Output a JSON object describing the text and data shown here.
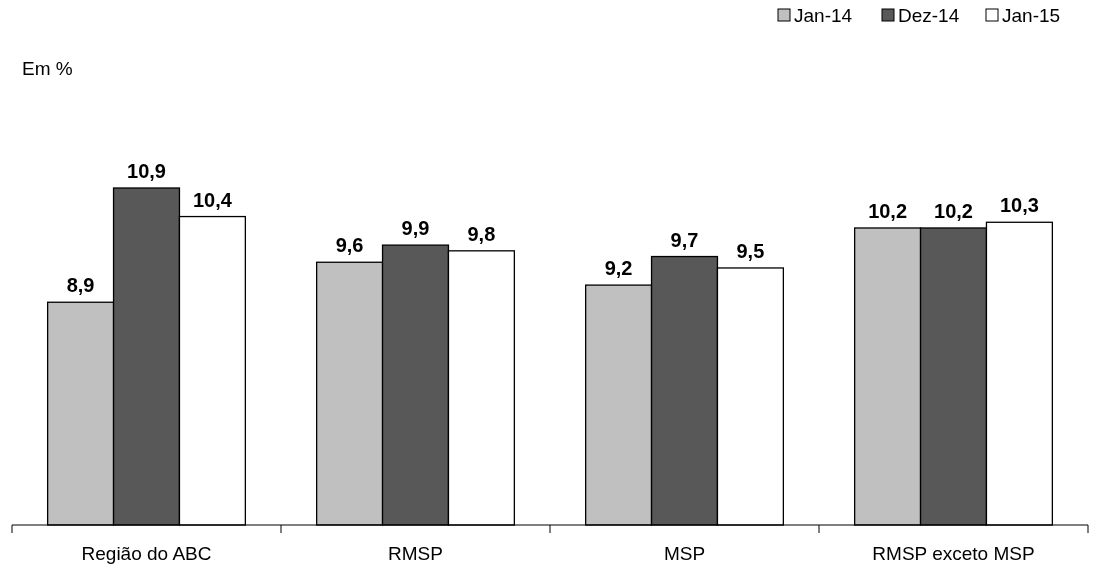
{
  "chart_data": {
    "type": "bar",
    "categories": [
      "Região do ABC",
      "RMSP",
      "MSP",
      "RMSP exceto MSP"
    ],
    "series": [
      {
        "name": "Jan-14",
        "color": "#c0c0c0",
        "values": [
          8.9,
          9.6,
          9.2,
          10.2
        ],
        "value_labels": [
          "8,9",
          "9,6",
          "9,2",
          "10,2"
        ]
      },
      {
        "name": "Dez-14",
        "color": "#585858",
        "values": [
          10.9,
          9.9,
          9.7,
          10.2
        ],
        "value_labels": [
          "10,9",
          "9,9",
          "9,7",
          "10,2"
        ]
      },
      {
        "name": "Jan-15",
        "color": "#ffffff",
        "values": [
          10.4,
          9.8,
          9.5,
          10.3
        ],
        "value_labels": [
          "10,4",
          "9,8",
          "9,5",
          "10,3"
        ]
      }
    ],
    "ylim": [
      5,
      10.9
    ],
    "legend": "top right",
    "tick_labels": "x",
    "grid": false,
    "annotations": [
      "Em %"
    ]
  }
}
